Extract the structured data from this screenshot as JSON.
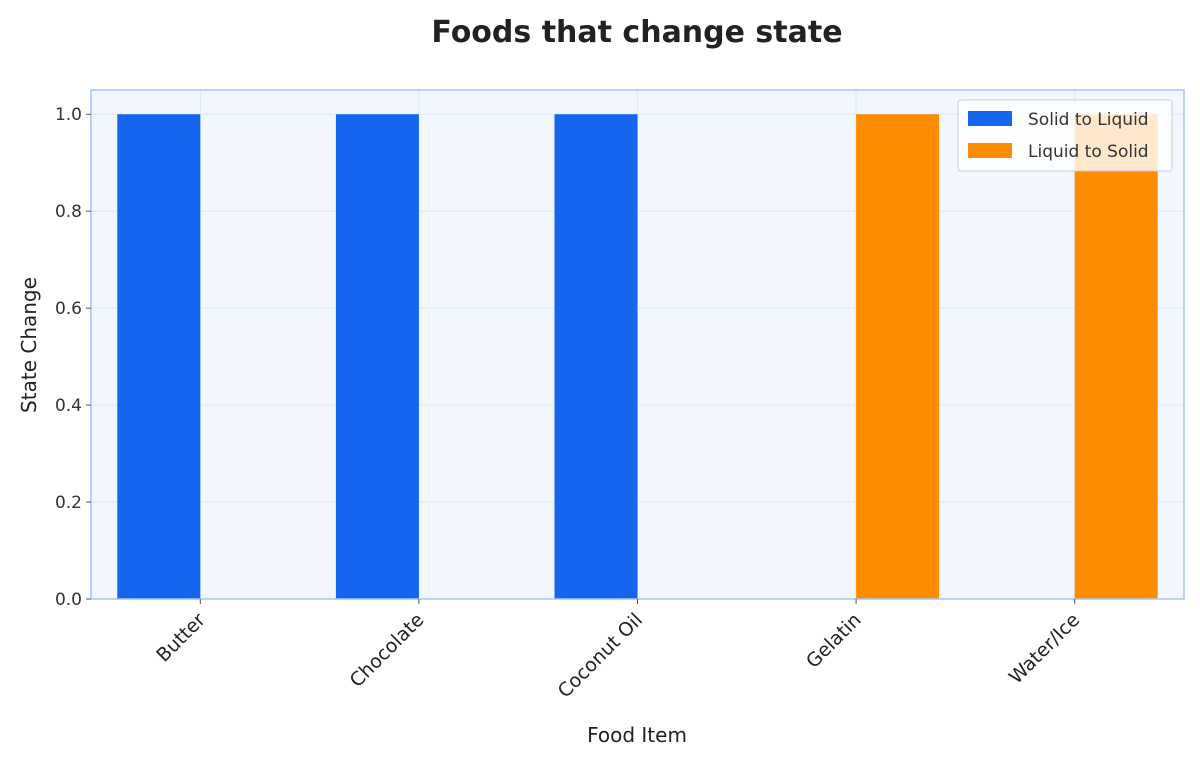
{
  "chart_data": {
    "type": "bar",
    "title": "Foods that change state",
    "xlabel": "Food Item",
    "ylabel": "State Change",
    "categories": [
      "Butter",
      "Chocolate",
      "Coconut Oil",
      "Gelatin",
      "Water/Ice"
    ],
    "series": [
      {
        "name": "Solid to Liquid",
        "color": "#1565ee",
        "values": [
          1,
          1,
          1,
          0,
          0
        ]
      },
      {
        "name": "Liquid to Solid",
        "color": "#ff8c00",
        "values": [
          0,
          0,
          0,
          1,
          1
        ]
      }
    ],
    "ylim": [
      0,
      1.05
    ],
    "yticks": [
      "0.0",
      "0.2",
      "0.4",
      "0.6",
      "0.8",
      "1.0"
    ],
    "grid": true,
    "legend_position": "top-right",
    "plot_background": "#f2f7fe",
    "frame_color": "#a7c4f3"
  }
}
